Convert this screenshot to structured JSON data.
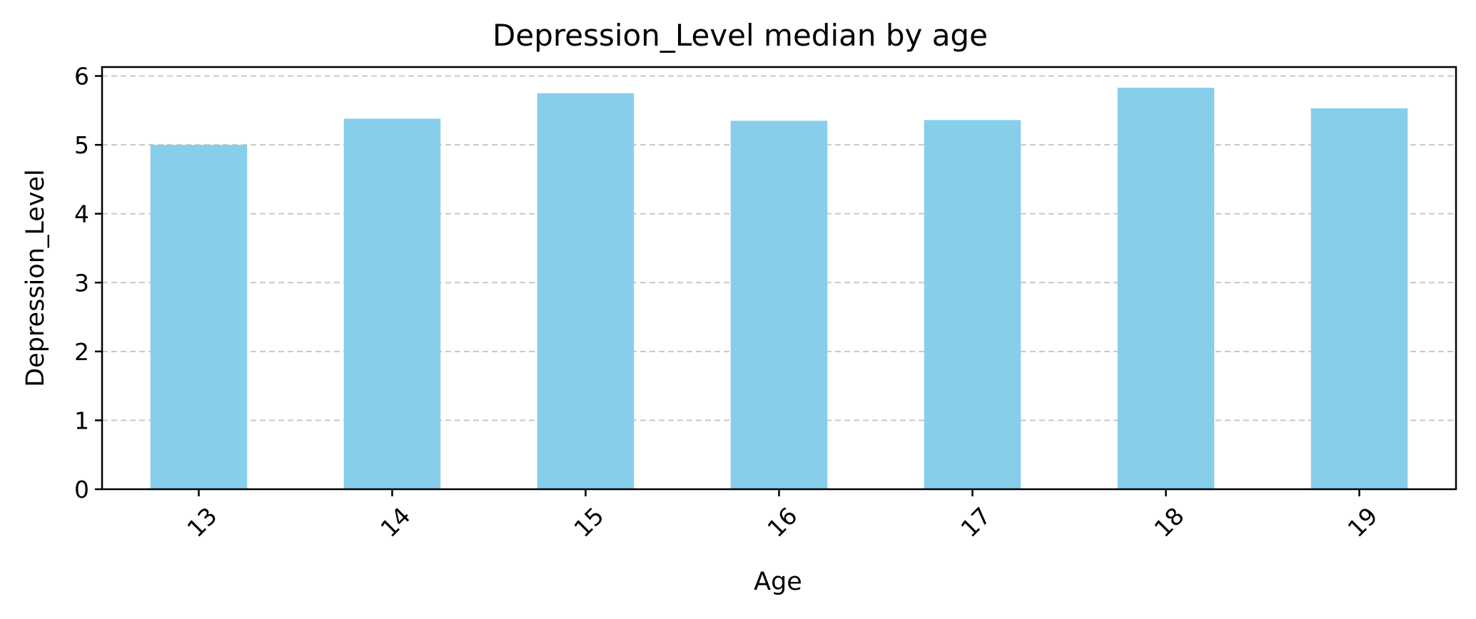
{
  "chart_data": {
    "type": "bar",
    "title": "Depression_Level median by age",
    "xlabel": "Age",
    "ylabel": "Depression_Level",
    "categories": [
      "13",
      "14",
      "15",
      "16",
      "17",
      "18",
      "19"
    ],
    "values": [
      5.0,
      5.38,
      5.75,
      5.35,
      5.36,
      5.83,
      5.53
    ],
    "ylim": [
      0,
      6.13
    ],
    "yticks": [
      0,
      1,
      2,
      3,
      4,
      5,
      6
    ],
    "grid": "y-dashed",
    "legend": "none",
    "x_tick_rotation_deg": 45,
    "colors": {
      "bar": "#87CEEB",
      "grid": "#c8c8c8",
      "axis": "#000000"
    }
  }
}
